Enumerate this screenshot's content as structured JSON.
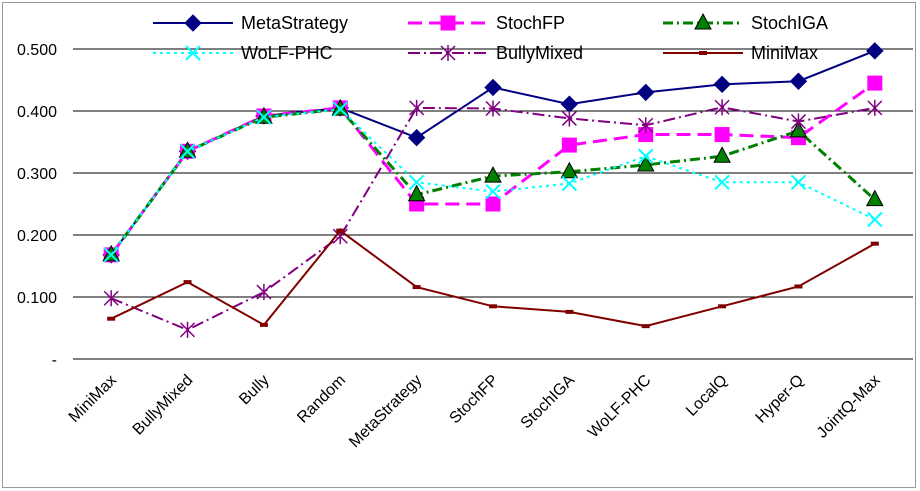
{
  "chart_data": {
    "type": "line",
    "title": "",
    "xlabel": "",
    "ylabel": "",
    "categories": [
      "MiniMax",
      "BullyMixed",
      "Bully",
      "Random",
      "MetaStrategy",
      "StochFP",
      "StochIGA",
      "WoLF-PHC",
      "LocalQ",
      "Hyper-Q",
      "JointQ-Max"
    ],
    "ylim": [
      0,
      0.5
    ],
    "y_ticks": [
      0,
      0.1,
      0.2,
      0.3,
      0.4,
      0.5
    ],
    "y_tick_labels": [
      "-",
      "0.100",
      "0.200",
      "0.300",
      "0.400",
      "0.500"
    ],
    "grid": "horizontal",
    "legend_position": "top",
    "series": [
      {
        "name": "MetaStrategy",
        "color": "#000080",
        "dash": "",
        "marker": "diamond",
        "values": [
          0.168,
          0.335,
          0.392,
          0.405,
          0.357,
          0.438,
          0.411,
          0.43,
          0.443,
          0.448,
          0.497
        ]
      },
      {
        "name": "StochFP",
        "color": "#ff00ff",
        "dash": "14,7",
        "marker": "square",
        "values": [
          0.168,
          0.335,
          0.392,
          0.405,
          0.25,
          0.25,
          0.345,
          0.362,
          0.362,
          0.357,
          0.445
        ]
      },
      {
        "name": "StochIGA",
        "color": "#008000",
        "dash": "10,4,2,4",
        "marker": "triangle",
        "values": [
          0.168,
          0.335,
          0.39,
          0.403,
          0.265,
          0.295,
          0.302,
          0.313,
          0.327,
          0.368,
          0.257
        ]
      },
      {
        "name": "WoLF-PHC",
        "color": "#00ffff",
        "dash": "3,4",
        "marker": "x",
        "values": [
          0.168,
          0.335,
          0.39,
          0.403,
          0.285,
          0.27,
          0.283,
          0.327,
          0.285,
          0.285,
          0.225
        ]
      },
      {
        "name": "BullyMixed",
        "color": "#800080",
        "dash": "12,4,2,4",
        "marker": "star",
        "values": [
          0.098,
          0.047,
          0.108,
          0.198,
          0.405,
          0.404,
          0.388,
          0.377,
          0.406,
          0.383,
          0.405
        ]
      },
      {
        "name": "MiniMax",
        "color": "#800000",
        "dash": "",
        "marker": "dash",
        "values": [
          0.065,
          0.124,
          0.055,
          0.207,
          0.116,
          0.085,
          0.076,
          0.053,
          0.085,
          0.117,
          0.186
        ]
      }
    ]
  }
}
